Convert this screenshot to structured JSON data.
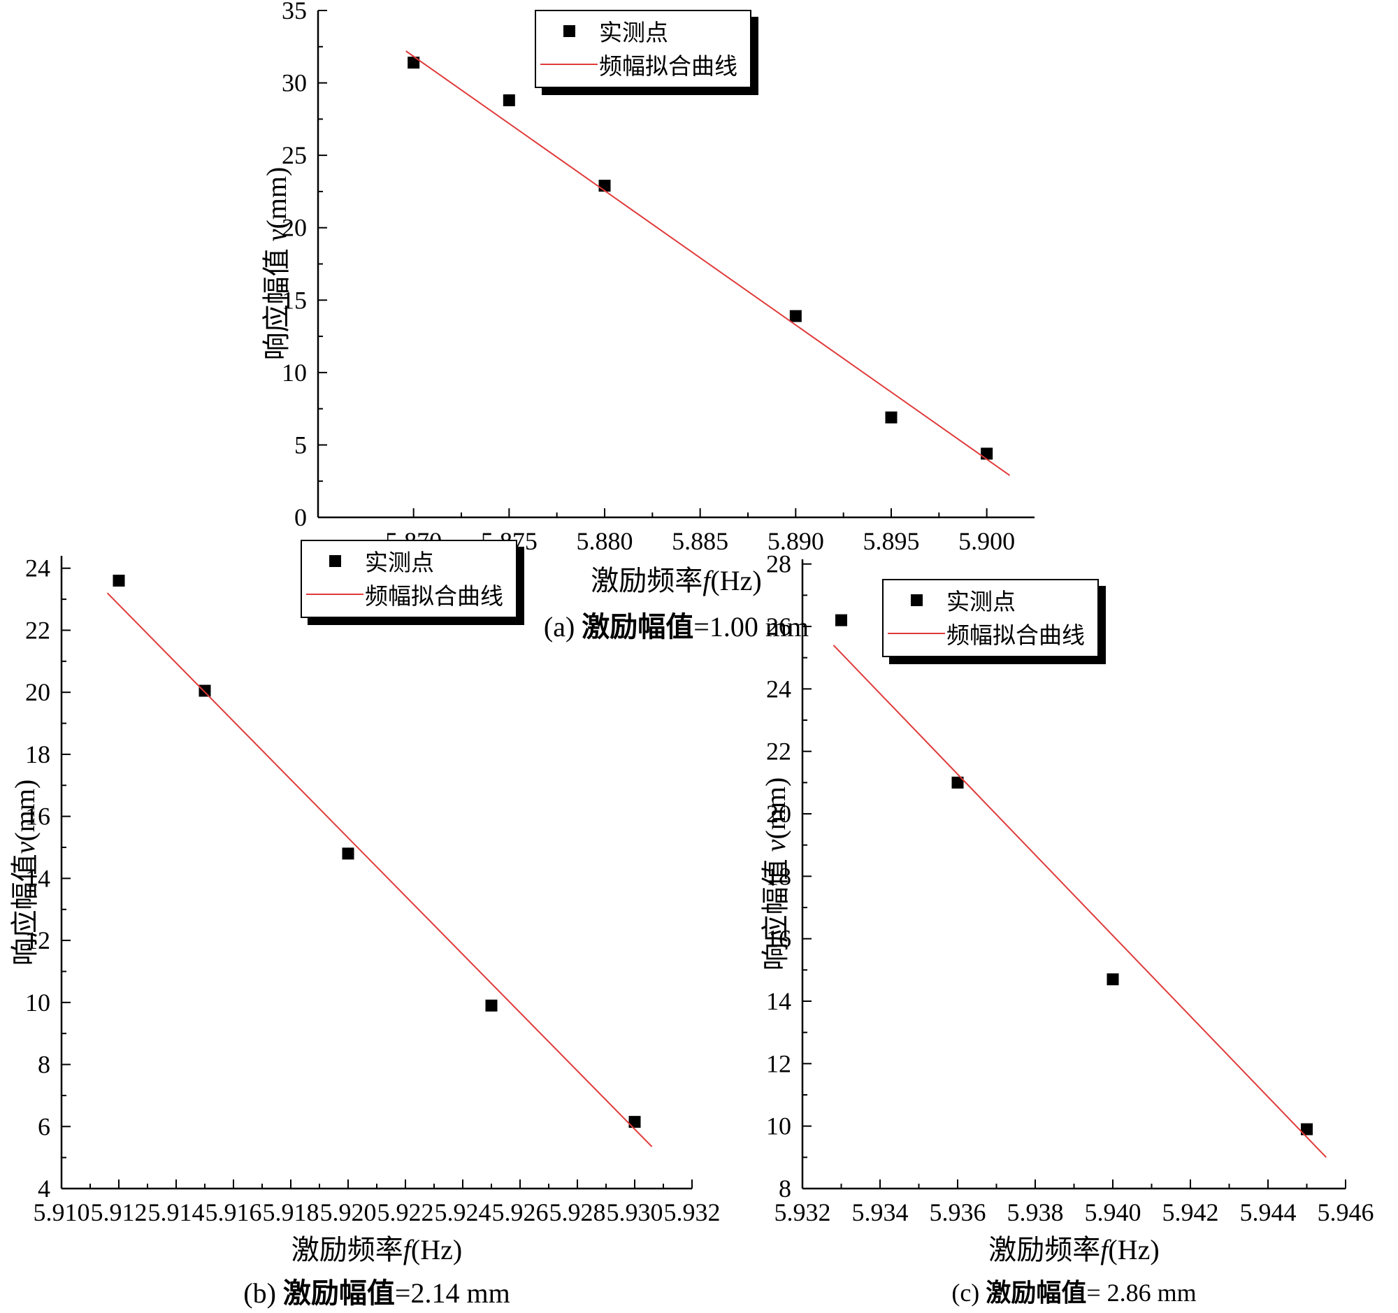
{
  "page": {
    "background": "#ffffff"
  },
  "style": {
    "marker_color": "#000000",
    "fit_line_color": "#e03a3a",
    "axis_color": "#000000",
    "legend_shadow_color": "#000000"
  },
  "legend": {
    "points_label": "实测点",
    "line_label": "频幅拟合曲线"
  },
  "chart_data": [
    {
      "id": "a",
      "type": "scatter",
      "caption": {
        "index": "(a)",
        "name": "激励幅值",
        "value": "=1.00 mm"
      },
      "xlabel": {
        "cn": "激励频率",
        "var": "f",
        "unit": "(Hz)"
      },
      "ylabel": {
        "cn": "响应幅值 ",
        "var": "v",
        "unit": "(mm)"
      },
      "xlim": [
        5.865,
        5.9025
      ],
      "ylim": [
        0,
        35
      ],
      "xticks": [
        "5.870",
        "5.875",
        "5.880",
        "5.885",
        "5.890",
        "5.895",
        "5.900"
      ],
      "yticks": [
        "0",
        "5",
        "10",
        "15",
        "20",
        "25",
        "30",
        "35"
      ],
      "grid": false,
      "legend_position": "top-center",
      "series": [
        {
          "name": "实测点",
          "kind": "scatter",
          "marker": "square",
          "color": "#000000",
          "x": [
            5.87,
            5.875,
            5.88,
            5.89,
            5.895,
            5.9
          ],
          "y": [
            31.4,
            28.8,
            22.9,
            13.9,
            6.9,
            4.4
          ]
        },
        {
          "name": "频幅拟合曲线",
          "kind": "line",
          "color": "#e03a3a",
          "x": [
            5.8696,
            5.9012
          ],
          "y": [
            32.2,
            2.9
          ]
        }
      ]
    },
    {
      "id": "b",
      "type": "scatter",
      "caption": {
        "index": "(b)",
        "name": "激励幅值",
        "value": "=2.14 mm"
      },
      "xlabel": {
        "cn": "激励频率",
        "var": "f",
        "unit": "(Hz)"
      },
      "ylabel": {
        "cn": "响应幅值",
        "var": "v",
        "unit": "(mm)"
      },
      "xlim": [
        5.91,
        5.932
      ],
      "ylim": [
        4,
        24.4
      ],
      "xticks": [
        "5.910",
        "5.912",
        "5.914",
        "5.916",
        "5.918",
        "5.920",
        "5.922",
        "5.924",
        "5.926",
        "5.928",
        "5.930",
        "5.932"
      ],
      "yticks": [
        "4",
        "6",
        "8",
        "10",
        "12",
        "14",
        "16",
        "18",
        "20",
        "22",
        "24"
      ],
      "grid": false,
      "legend_position": "top-center",
      "series": [
        {
          "name": "实测点",
          "kind": "scatter",
          "marker": "square",
          "color": "#000000",
          "x": [
            5.912,
            5.915,
            5.92,
            5.925,
            5.93
          ],
          "y": [
            23.6,
            20.05,
            14.8,
            9.9,
            6.15
          ]
        },
        {
          "name": "频幅拟合曲线",
          "kind": "line",
          "color": "#e03a3a",
          "x": [
            5.9116,
            5.9306
          ],
          "y": [
            23.2,
            5.35
          ]
        }
      ]
    },
    {
      "id": "c",
      "type": "scatter",
      "caption": {
        "index": "(c)",
        "name": "激励幅值",
        "value": "= 2.86 mm"
      },
      "xlabel": {
        "cn": "激励频率",
        "var": "f",
        "unit": "(Hz)"
      },
      "ylabel": {
        "cn": "响应幅值 ",
        "var": "v",
        "unit": "(mm)"
      },
      "xlim": [
        5.932,
        5.946
      ],
      "ylim": [
        8,
        28.15
      ],
      "xticks": [
        "5.932",
        "5.934",
        "5.936",
        "5.938",
        "5.940",
        "5.942",
        "5.944",
        "5.946"
      ],
      "yticks": [
        "8",
        "10",
        "12",
        "14",
        "16",
        "18",
        "20",
        "22",
        "24",
        "26",
        "28"
      ],
      "grid": false,
      "legend_position": "top-right",
      "series": [
        {
          "name": "实测点",
          "kind": "scatter",
          "marker": "square",
          "color": "#000000",
          "x": [
            5.933,
            5.936,
            5.94,
            5.945
          ],
          "y": [
            26.2,
            21.0,
            14.7,
            9.9
          ]
        },
        {
          "name": "频幅拟合曲线",
          "kind": "line",
          "color": "#e03a3a",
          "x": [
            5.9328,
            5.9455
          ],
          "y": [
            25.4,
            9.0
          ]
        }
      ]
    }
  ]
}
